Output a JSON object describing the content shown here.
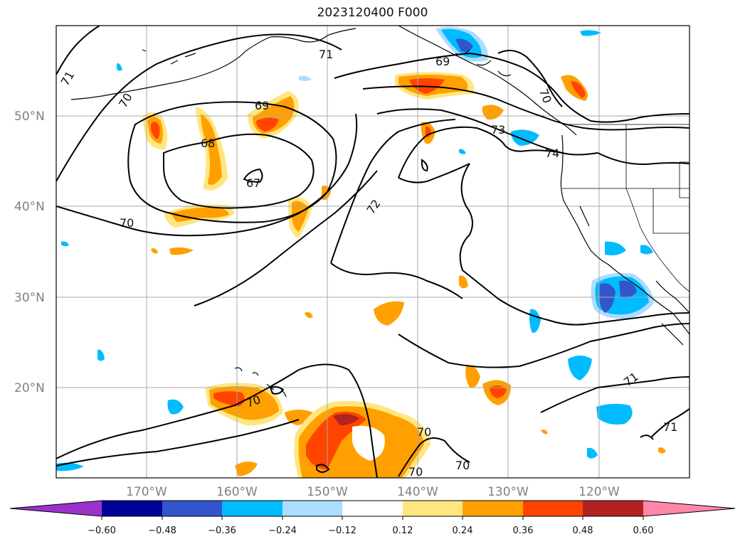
{
  "title": "2023120400 F000",
  "map": {
    "lon_range": [
      -180,
      -110
    ],
    "lat_range": [
      10,
      60
    ],
    "lat_labels": [
      "20°N",
      "30°N",
      "40°N",
      "50°N"
    ],
    "lon_labels": [
      "170°W",
      "160°W",
      "150°W",
      "140°W",
      "130°W",
      "120°W"
    ],
    "gridlines": true
  },
  "contour_labels": [
    "71",
    "70",
    "69",
    "68",
    "67",
    "70",
    "72",
    "73",
    "74",
    "69",
    "71",
    "70",
    "70",
    "71",
    "70",
    "70",
    "70"
  ],
  "colorbar": {
    "ticks": [
      "−0.60",
      "−0.48",
      "−0.36",
      "−0.24",
      "−0.12",
      "0.12",
      "0.24",
      "0.36",
      "0.48",
      "0.60"
    ],
    "colors": [
      "#9933cc",
      "#000099",
      "#3355cc",
      "#00bbff",
      "#aaddff",
      "#ffffff",
      "#ffe680",
      "#ffa000",
      "#ff4400",
      "#b22222",
      "#ff88aa"
    ]
  }
}
